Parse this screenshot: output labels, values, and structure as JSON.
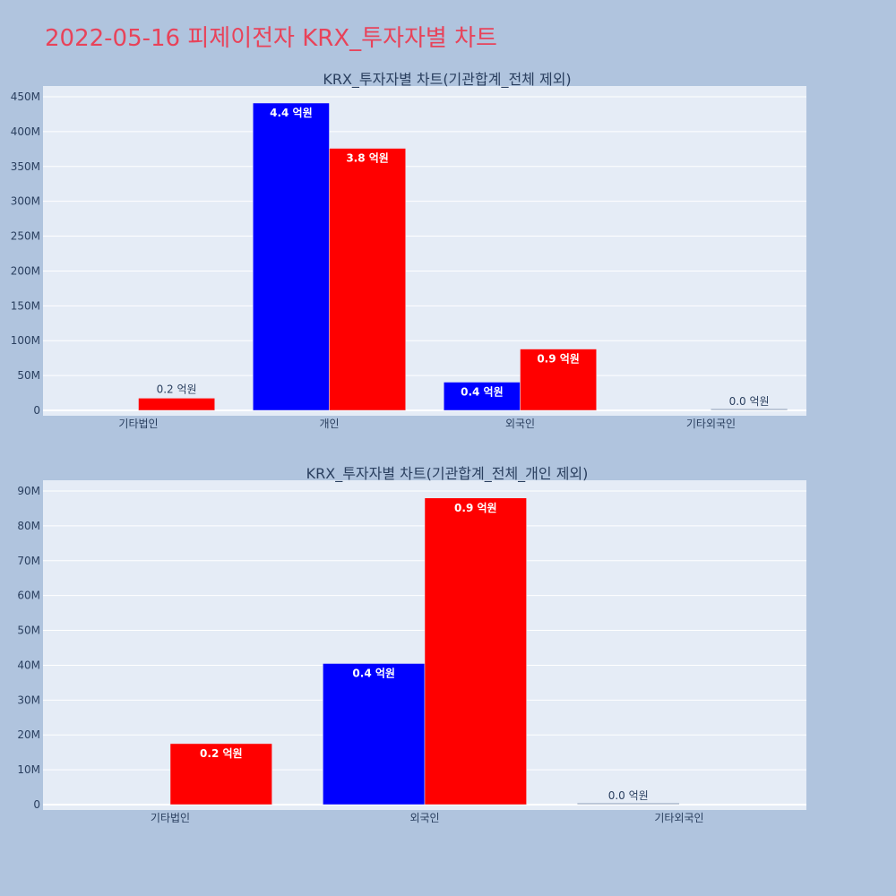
{
  "page": {
    "title": "2022-05-16 피제이전자 KRX_투자자별 차트",
    "background": "#b0c4de",
    "plot_background": "#e5ecf6",
    "title_color": "#e8435a"
  },
  "chart_data": [
    {
      "type": "bar",
      "title": "KRX_투자자별 차트(기관합계_전체 제외)",
      "categories": [
        "기타법인",
        "개인",
        "외국인",
        "기타외국인"
      ],
      "ylim": [
        0,
        450000000
      ],
      "yticks": [
        0,
        50000000,
        100000000,
        150000000,
        200000000,
        250000000,
        300000000,
        350000000,
        400000000,
        450000000
      ],
      "ytick_labels": [
        "0",
        "50M",
        "100M",
        "150M",
        "200M",
        "250M",
        "300M",
        "350M",
        "400M",
        "450M"
      ],
      "grid": true,
      "series": [
        {
          "color": "#0000ff",
          "values": [
            0,
            441000000,
            40500000,
            0
          ],
          "labels": [
            "",
            "4.4 억원",
            "0.4 억원",
            ""
          ]
        },
        {
          "color": "#ff0000",
          "values": [
            17500000,
            376000000,
            88000000,
            0
          ],
          "labels": [
            "0.2 억원",
            "3.8 억원",
            "0.9 억원",
            "0.0 억원"
          ]
        }
      ]
    },
    {
      "type": "bar",
      "title": "KRX_투자자별 차트(기관합계_전체_개인 제외)",
      "categories": [
        "기타법인",
        "외국인",
        "기타외국인"
      ],
      "ylim": [
        0,
        90000000
      ],
      "yticks": [
        0,
        10000000,
        20000000,
        30000000,
        40000000,
        50000000,
        60000000,
        70000000,
        80000000,
        90000000
      ],
      "ytick_labels": [
        "0",
        "10M",
        "20M",
        "30M",
        "40M",
        "50M",
        "60M",
        "70M",
        "80M",
        "90M"
      ],
      "grid": true,
      "series": [
        {
          "color": "#0000ff",
          "values": [
            0,
            40500000,
            0
          ],
          "labels": [
            "",
            "0.4 억원",
            "0.0 억원"
          ]
        },
        {
          "color": "#ff0000",
          "values": [
            17500000,
            88000000,
            0
          ],
          "labels": [
            "0.2 억원",
            "0.9 억원",
            ""
          ]
        }
      ]
    }
  ]
}
